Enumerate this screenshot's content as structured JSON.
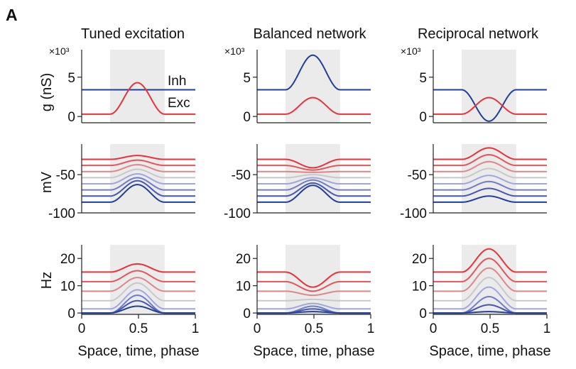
{
  "panel_label": "A",
  "columns": [
    {
      "title": "Tuned excitation",
      "color": "#c8323c"
    },
    {
      "title": "Balanced network",
      "color": "#e0a32a"
    },
    {
      "title": "Reciprocal network",
      "color": "#3aa64a"
    }
  ],
  "shading": {
    "x_range": [
      0.25,
      0.73
    ],
    "color": "#ebebeb"
  },
  "row_labels": {
    "conductance": "g (nS)",
    "voltage": "mV",
    "rate": "Hz"
  },
  "x_axis": {
    "label": "Space, time, phase",
    "ticks": [
      "0",
      "0.5",
      "1"
    ]
  },
  "conductance_multiplier": "×10³",
  "legend": {
    "inh": "Inh",
    "exc": "Exc"
  },
  "colors": {
    "inh": "#1f3f99",
    "exc": "#e8323a",
    "gradient": [
      "#e8323a",
      "#e4545a",
      "#de8688",
      "#c8c8c8",
      "#9ea6dc",
      "#6e7ccc",
      "#4656b4",
      "#1f3f99"
    ]
  },
  "chart_data": [
    {
      "type": "line",
      "title": "Tuned excitation",
      "ylabel": "g (nS)",
      "y_multiplier": "×10³",
      "ylim": [
        -0.8,
        8.5
      ],
      "yticks": [
        0,
        5
      ],
      "series": [
        {
          "name": "Inh",
          "baseline": 3.4,
          "peak": 3.4
        },
        {
          "name": "Exc",
          "baseline": 0.3,
          "peak": 4.3
        }
      ]
    },
    {
      "type": "line",
      "title": "Balanced network",
      "ylabel": "g (nS)",
      "y_multiplier": "×10³",
      "ylim": [
        -0.8,
        8.5
      ],
      "yticks": [
        0,
        5
      ],
      "series": [
        {
          "name": "Inh",
          "baseline": 3.4,
          "peak": 7.8
        },
        {
          "name": "Exc",
          "baseline": 0.3,
          "peak": 2.4
        }
      ]
    },
    {
      "type": "line",
      "title": "Reciprocal network",
      "ylabel": "g (nS)",
      "y_multiplier": "×10³",
      "ylim": [
        -0.8,
        8.5
      ],
      "yticks": [
        0,
        5
      ],
      "series": [
        {
          "name": "Inh",
          "baseline": 3.4,
          "peak": -0.6
        },
        {
          "name": "Exc",
          "baseline": 0.3,
          "peak": 2.4
        }
      ]
    },
    {
      "type": "line",
      "title": "Tuned excitation",
      "ylabel": "mV",
      "ylim": [
        -100,
        -10
      ],
      "yticks": [
        -50,
        -100
      ],
      "series": [
        {
          "baseline": -30,
          "peak": -25
        },
        {
          "baseline": -38,
          "peak": -31
        },
        {
          "baseline": -46,
          "peak": -37
        },
        {
          "baseline": -54,
          "peak": -43
        },
        {
          "baseline": -62,
          "peak": -49
        },
        {
          "baseline": -70,
          "peak": -54
        },
        {
          "baseline": -78,
          "peak": -58
        },
        {
          "baseline": -86,
          "peak": -63
        }
      ]
    },
    {
      "type": "line",
      "title": "Balanced network",
      "ylabel": "mV",
      "ylim": [
        -100,
        -10
      ],
      "yticks": [
        -50,
        -100
      ],
      "series": [
        {
          "baseline": -30,
          "peak": -41
        },
        {
          "baseline": -38,
          "peak": -44
        },
        {
          "baseline": -46,
          "peak": -47
        },
        {
          "baseline": -54,
          "peak": -50
        },
        {
          "baseline": -62,
          "peak": -54
        },
        {
          "baseline": -70,
          "peak": -57
        },
        {
          "baseline": -78,
          "peak": -61
        },
        {
          "baseline": -86,
          "peak": -64
        }
      ]
    },
    {
      "type": "line",
      "title": "Reciprocal network",
      "ylabel": "mV",
      "ylim": [
        -100,
        -10
      ],
      "yticks": [
        -50,
        -100
      ],
      "series": [
        {
          "baseline": -30,
          "peak": -15
        },
        {
          "baseline": -38,
          "peak": -24
        },
        {
          "baseline": -46,
          "peak": -33
        },
        {
          "baseline": -54,
          "peak": -42
        },
        {
          "baseline": -62,
          "peak": -51
        },
        {
          "baseline": -70,
          "peak": -59
        },
        {
          "baseline": -78,
          "peak": -68
        },
        {
          "baseline": -86,
          "peak": -78
        }
      ]
    },
    {
      "type": "line",
      "title": "Tuned excitation",
      "ylabel": "Hz",
      "xlabel": "Space, time, phase",
      "ylim": [
        -0.5,
        25
      ],
      "yticks": [
        0,
        10,
        20
      ],
      "xticks": [
        0,
        0.5,
        1
      ],
      "series": [
        {
          "baseline": 15,
          "peak": 18
        },
        {
          "baseline": 11.5,
          "peak": 15.5
        },
        {
          "baseline": 8,
          "peak": 13
        },
        {
          "baseline": 4.5,
          "peak": 11
        },
        {
          "baseline": 1.5,
          "peak": 8.5
        },
        {
          "baseline": 0,
          "peak": 6.5
        },
        {
          "baseline": 0,
          "peak": 4.5
        },
        {
          "baseline": 0,
          "peak": 2.5
        }
      ]
    },
    {
      "type": "line",
      "title": "Balanced network",
      "ylabel": "Hz",
      "xlabel": "Space, time, phase",
      "ylim": [
        -0.5,
        25
      ],
      "yticks": [
        0,
        10,
        20
      ],
      "xticks": [
        0,
        0.5,
        1
      ],
      "series": [
        {
          "baseline": 15,
          "peak": 9.5
        },
        {
          "baseline": 11.5,
          "peak": 8
        },
        {
          "baseline": 8,
          "peak": 6.5
        },
        {
          "baseline": 4.5,
          "peak": 5
        },
        {
          "baseline": 1.5,
          "peak": 3.5
        },
        {
          "baseline": 0,
          "peak": 2.5
        },
        {
          "baseline": 0,
          "peak": 1.5
        },
        {
          "baseline": 0,
          "peak": 0.5
        }
      ]
    },
    {
      "type": "line",
      "title": "Reciprocal network",
      "ylabel": "Hz",
      "xlabel": "Space, time, phase",
      "ylim": [
        -0.5,
        25
      ],
      "yticks": [
        0,
        10,
        20
      ],
      "xticks": [
        0,
        0.5,
        1
      ],
      "series": [
        {
          "baseline": 15,
          "peak": 23.5
        },
        {
          "baseline": 11.5,
          "peak": 20
        },
        {
          "baseline": 8,
          "peak": 16.5
        },
        {
          "baseline": 4.5,
          "peak": 13
        },
        {
          "baseline": 1.5,
          "peak": 9.5
        },
        {
          "baseline": 0,
          "peak": 6
        },
        {
          "baseline": 0,
          "peak": 3
        },
        {
          "baseline": 0,
          "peak": 0.5
        }
      ]
    }
  ]
}
